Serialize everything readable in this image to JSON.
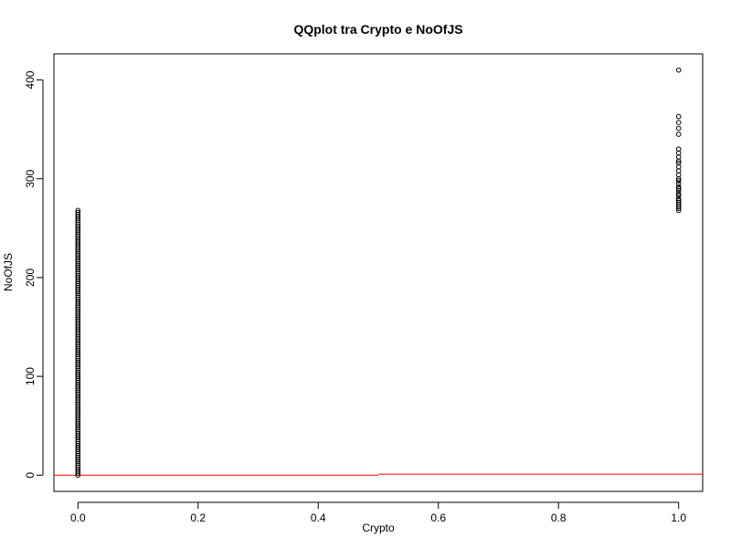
{
  "chart_data": {
    "type": "scatter",
    "title": "QQplot tra Crypto e NoOfJS",
    "xlabel": "Crypto",
    "ylabel": "NoOfJS",
    "xlim": [
      -0.04,
      1.04
    ],
    "ylim": [
      -16.4,
      426.4
    ],
    "x_ticks": [
      0.0,
      0.2,
      0.4,
      0.6,
      0.8,
      1.0
    ],
    "x_tick_labels": [
      "0.0",
      "0.2",
      "0.4",
      "0.6",
      "0.8",
      "1.0"
    ],
    "y_ticks": [
      0,
      100,
      200,
      300,
      400
    ],
    "y_tick_labels": [
      "0",
      "100",
      "200",
      "300",
      "400"
    ],
    "grid": false,
    "legend": "none",
    "colors": {
      "points": "#000000",
      "reference_line": "#ff0000"
    },
    "series": [
      {
        "x": 0,
        "y": [
          0,
          2,
          4,
          6,
          8,
          10,
          12,
          14,
          16,
          18,
          20,
          22,
          24,
          26,
          28,
          30,
          32,
          34,
          36,
          38,
          40,
          42,
          44,
          46,
          48,
          50,
          52,
          54,
          56,
          58,
          60,
          62,
          64,
          66,
          68,
          70,
          72,
          74,
          76,
          78,
          80,
          82,
          84,
          86,
          88,
          90,
          92,
          94,
          96,
          98,
          100,
          102,
          104,
          106,
          108,
          110,
          112,
          114,
          116,
          118,
          120,
          122,
          124,
          126,
          128,
          130,
          132,
          134,
          136,
          138,
          140,
          142,
          144,
          146,
          148,
          150,
          152,
          154,
          156,
          158,
          160,
          162,
          164,
          166,
          168,
          170,
          172,
          174,
          176,
          178,
          180,
          182,
          184,
          186,
          188,
          190,
          192,
          194,
          196,
          198,
          200,
          202,
          204,
          206,
          208,
          210,
          212,
          214,
          216,
          218,
          220,
          222,
          224,
          226,
          228,
          230,
          232,
          234,
          236,
          238,
          240,
          242,
          244,
          246,
          248,
          250,
          252,
          254,
          256,
          258,
          260,
          262,
          264,
          266,
          268
        ]
      },
      {
        "x": 1,
        "y": [
          268,
          270,
          272,
          274,
          276,
          278,
          280,
          283,
          285,
          288,
          290,
          292,
          295,
          298,
          300,
          304,
          308,
          312,
          316,
          318,
          322,
          326,
          330,
          345,
          351,
          357,
          363,
          410
        ]
      }
    ],
    "reference_line": [
      {
        "x0": -0.04,
        "x1": 0.5,
        "y": 0
      },
      {
        "x0": 0.5,
        "x1": 1.04,
        "y": 1
      }
    ]
  }
}
